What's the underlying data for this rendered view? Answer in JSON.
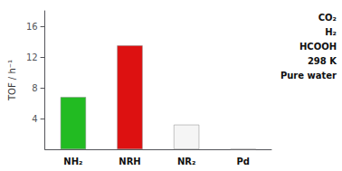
{
  "chart_data": {
    "type": "bar",
    "categories": [
      "NH₂",
      "NRH",
      "NR₂",
      "Pd"
    ],
    "values": [
      6.8,
      13.5,
      3.2,
      0.0
    ],
    "colors": [
      "#22bb22",
      "#dd1111",
      "#f5f5f5",
      "#e8c840"
    ],
    "ylabel": "TOF / h⁻¹",
    "ylim": [
      0,
      18
    ],
    "yticks": [
      4,
      8,
      12,
      16
    ],
    "grid": false,
    "annotations": [
      "CO₂",
      "H₂",
      "HCOOH",
      "298 K",
      "Pure water"
    ]
  }
}
